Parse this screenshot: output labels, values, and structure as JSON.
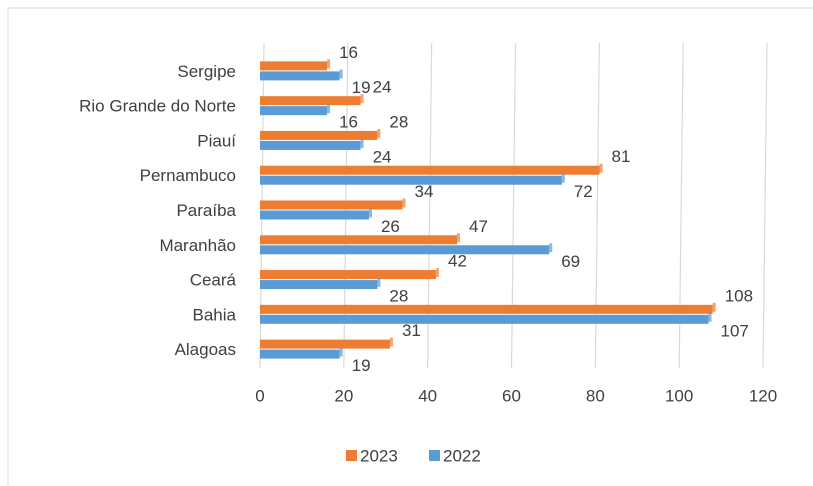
{
  "chart_data": {
    "type": "bar",
    "orientation": "horizontal",
    "categories": [
      "Alagoas",
      "Bahia",
      "Ceará",
      "Maranhão",
      "Paraíba",
      "Pernambuco",
      "Piauí",
      "Rio Grande do Norte",
      "Sergipe"
    ],
    "series": [
      {
        "name": "2023",
        "color": "#ed7d31",
        "values": [
          31,
          108,
          42,
          47,
          34,
          81,
          28,
          24,
          16
        ]
      },
      {
        "name": "2022",
        "color": "#5b9bd5",
        "values": [
          19,
          107,
          28,
          69,
          26,
          72,
          24,
          16,
          19
        ]
      }
    ],
    "xlim": [
      0,
      120
    ],
    "xticks": [
      0,
      20,
      40,
      60,
      80,
      100,
      120
    ],
    "grid": true,
    "legend": "bottom"
  }
}
